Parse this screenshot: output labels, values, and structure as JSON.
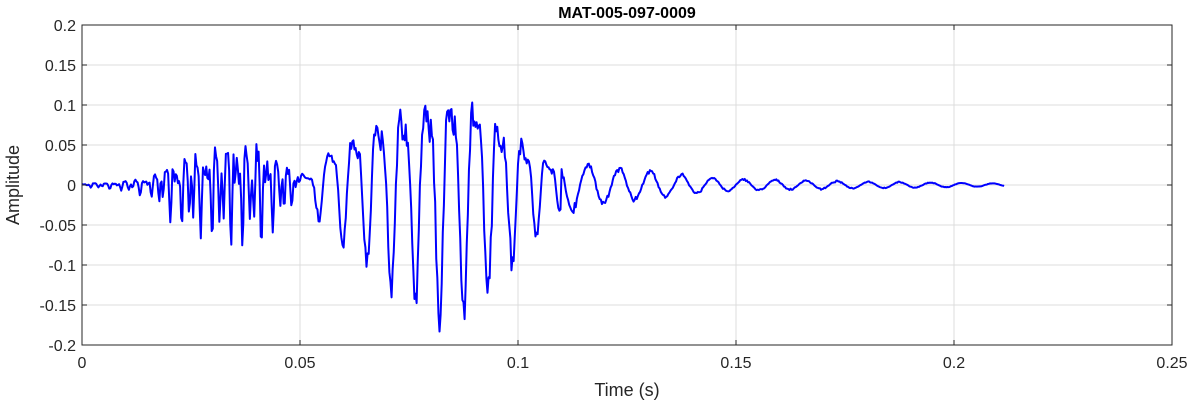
{
  "chart_data": {
    "type": "line",
    "title": "MAT-005-097-0009",
    "xlabel": "Time (s)",
    "ylabel": "Amplitude",
    "xlim": [
      0,
      0.25
    ],
    "ylim": [
      -0.2,
      0.2
    ],
    "xticks": [
      0,
      0.05,
      0.1,
      0.15,
      0.2,
      0.25
    ],
    "xtick_labels": [
      "0",
      "0.05",
      "0.1",
      "0.15",
      "0.2",
      "0.25"
    ],
    "yticks": [
      0.2,
      0.15,
      0.1,
      0.05,
      0,
      -0.05,
      -0.1,
      -0.15,
      -0.2
    ],
    "ytick_labels": [
      "0.2",
      "0.15",
      "0.1",
      "0.05",
      "0",
      "-0.05",
      "-0.1",
      "-0.15",
      "-0.2"
    ],
    "grid": true,
    "series": [
      {
        "color": "#0000ff",
        "sample_interval_s": 0.00025,
        "x_end_s": 0.2115,
        "envelope": {
          "t": [
            0,
            0.004,
            0.008,
            0.012,
            0.016,
            0.018,
            0.02,
            0.022,
            0.025,
            0.03,
            0.035,
            0.038,
            0.042,
            0.045,
            0.048,
            0.05,
            0.0515,
            0.053,
            0.056,
            0.06,
            0.065,
            0.07,
            0.075,
            0.08,
            0.083,
            0.087,
            0.09,
            0.095,
            0.1,
            0.103,
            0.106,
            0.11,
            0.115,
            0.12,
            0.125,
            0.13,
            0.14,
            0.15,
            0.16,
            0.175,
            0.19,
            0.2,
            0.2115
          ],
          "peak": [
            0.003,
            0.005,
            0.007,
            0.012,
            0.02,
            0.035,
            0.05,
            0.06,
            0.075,
            0.09,
            0.095,
            0.095,
            0.085,
            0.06,
            0.035,
            0.025,
            0.02,
            0.03,
            0.065,
            0.09,
            0.12,
            0.14,
            0.16,
            0.185,
            0.195,
            0.19,
            0.17,
            0.14,
            0.105,
            0.085,
            0.06,
            0.04,
            0.03,
            0.025,
            0.022,
            0.02,
            0.012,
            0.008,
            0.007,
            0.005,
            0.004,
            0.003,
            0.002
          ]
        },
        "tones": [
          {
            "from": 0,
            "to": 0.05,
            "freqs_hz": [
              430,
              720,
              1150
            ],
            "weights": [
              1,
              0.75,
              0.55
            ]
          },
          {
            "from": 0.05,
            "to": 0.11,
            "freqs_hz": [
              180,
              360
            ],
            "weights": [
              1,
              0.35
            ]
          },
          {
            "from": 0.11,
            "to": 0.2115,
            "freqs_hz": [
              140
            ],
            "weights": [
              1
            ]
          }
        ]
      }
    ]
  }
}
